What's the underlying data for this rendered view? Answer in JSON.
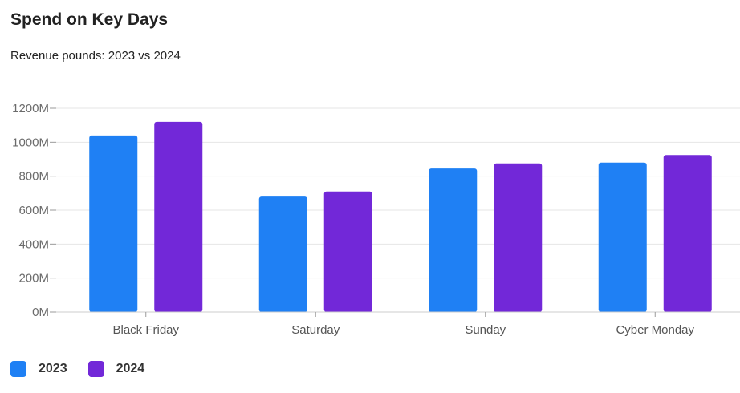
{
  "header": {
    "title": "Spend on Key Days",
    "subtitle": "Revenue pounds: 2023 vs 2024"
  },
  "legend": [
    {
      "label": "2023",
      "color": "#1f80f4"
    },
    {
      "label": "2024",
      "color": "#7228d8"
    }
  ],
  "chart_data": {
    "type": "bar",
    "title": "Spend on Key Days",
    "subtitle": "Revenue pounds: 2023 vs 2024",
    "xlabel": "",
    "ylabel": "",
    "categories": [
      "Black Friday",
      "Saturday",
      "Sunday",
      "Cyber Monday"
    ],
    "series": [
      {
        "name": "2023",
        "color": "#1f80f4",
        "values": [
          1040,
          680,
          845,
          880
        ]
      },
      {
        "name": "2024",
        "color": "#7228d8",
        "values": [
          1120,
          710,
          875,
          925
        ]
      }
    ],
    "ylim": [
      0,
      1200
    ],
    "yticks": [
      0,
      200,
      400,
      600,
      800,
      1000,
      1200
    ],
    "ytick_labels": [
      "0M",
      "200M",
      "400M",
      "600M",
      "800M",
      "1000M",
      "1200M"
    ],
    "grid": true,
    "legend_position": "bottom-left"
  }
}
